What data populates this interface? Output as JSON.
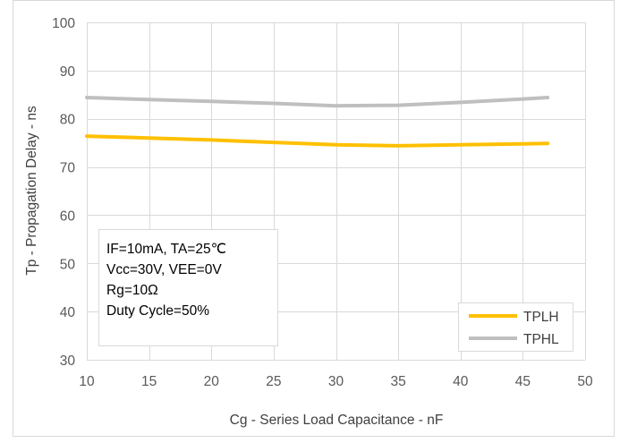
{
  "chart_data": {
    "type": "line",
    "xlabel": "Cg - Series Load Capacitance - nF",
    "ylabel": "Tp - Propagation Delay - ns",
    "xlim": [
      10,
      50
    ],
    "ylim": [
      30,
      100
    ],
    "xticks": [
      10,
      15,
      20,
      25,
      30,
      35,
      40,
      45,
      50
    ],
    "yticks": [
      30,
      40,
      50,
      60,
      70,
      80,
      90,
      100
    ],
    "grid": true,
    "legend_position": "bottom-right",
    "series": [
      {
        "name": "TPLH",
        "color": "#FFC000",
        "x": [
          10,
          15,
          20,
          25,
          30,
          35,
          40,
          45,
          47
        ],
        "y": [
          76.4,
          76.0,
          75.6,
          75.1,
          74.6,
          74.4,
          74.6,
          74.8,
          74.9
        ]
      },
      {
        "name": "TPHL",
        "color": "#BFBFBF",
        "x": [
          10,
          15,
          20,
          25,
          30,
          35,
          40,
          45,
          47
        ],
        "y": [
          84.4,
          84.0,
          83.6,
          83.2,
          82.7,
          82.8,
          83.4,
          84.1,
          84.4
        ]
      }
    ],
    "annotation_lines": [
      "IF=10mA, TA=25℃",
      "Vcc=30V, VEE=0V",
      "Rg=10Ω",
      "Duty Cycle=50%"
    ]
  }
}
